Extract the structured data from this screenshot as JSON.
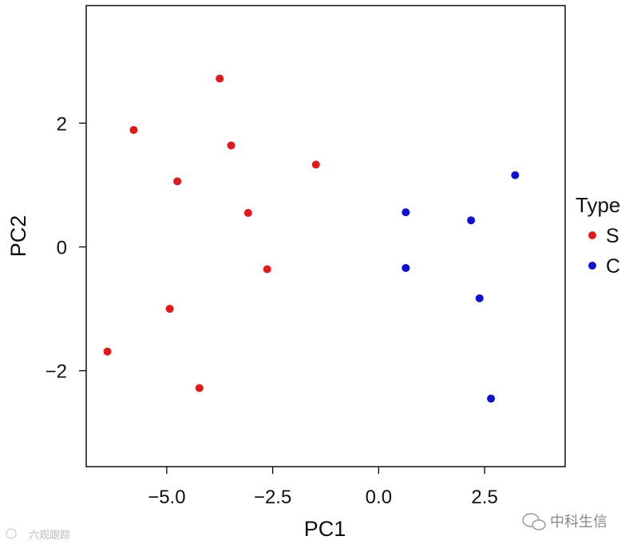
{
  "chart_data": {
    "type": "scatter",
    "xlabel": "PC1",
    "ylabel": "PC2",
    "xlim": [
      -6.9,
      4.4
    ],
    "ylim": [
      -3.55,
      3.9
    ],
    "xticks": [
      -5.0,
      -2.5,
      0.0,
      2.5
    ],
    "xtick_labels": [
      "−5.0",
      "−2.5",
      "0.0",
      "2.5"
    ],
    "yticks": [
      -2,
      0,
      2
    ],
    "ytick_labels": [
      "−2",
      "0",
      "2"
    ],
    "grid": false,
    "legend": {
      "title": "Type",
      "placement": "right",
      "entries": [
        {
          "name": "S",
          "color": "#e01a1a"
        },
        {
          "name": "C",
          "color": "#1010d0"
        }
      ]
    },
    "series": [
      {
        "name": "S",
        "color": "#e01a1a",
        "points": [
          {
            "x": -3.75,
            "y": 2.72
          },
          {
            "x": -5.78,
            "y": 1.89
          },
          {
            "x": -3.48,
            "y": 1.64
          },
          {
            "x": -1.48,
            "y": 1.33
          },
          {
            "x": -4.75,
            "y": 1.06
          },
          {
            "x": -3.08,
            "y": 0.55
          },
          {
            "x": -2.63,
            "y": -0.36
          },
          {
            "x": -4.93,
            "y": -1.0
          },
          {
            "x": -6.4,
            "y": -1.69
          },
          {
            "x": -4.23,
            "y": -2.28
          }
        ]
      },
      {
        "name": "C",
        "color": "#1010d0",
        "points": [
          {
            "x": 3.22,
            "y": 1.16
          },
          {
            "x": 0.64,
            "y": 0.56
          },
          {
            "x": 2.18,
            "y": 0.43
          },
          {
            "x": 0.64,
            "y": -0.34
          },
          {
            "x": 2.38,
            "y": -0.83
          },
          {
            "x": 2.65,
            "y": -2.45
          }
        ]
      }
    ]
  },
  "watermarks": {
    "right": "中科生信",
    "left": "六观跟踪"
  }
}
